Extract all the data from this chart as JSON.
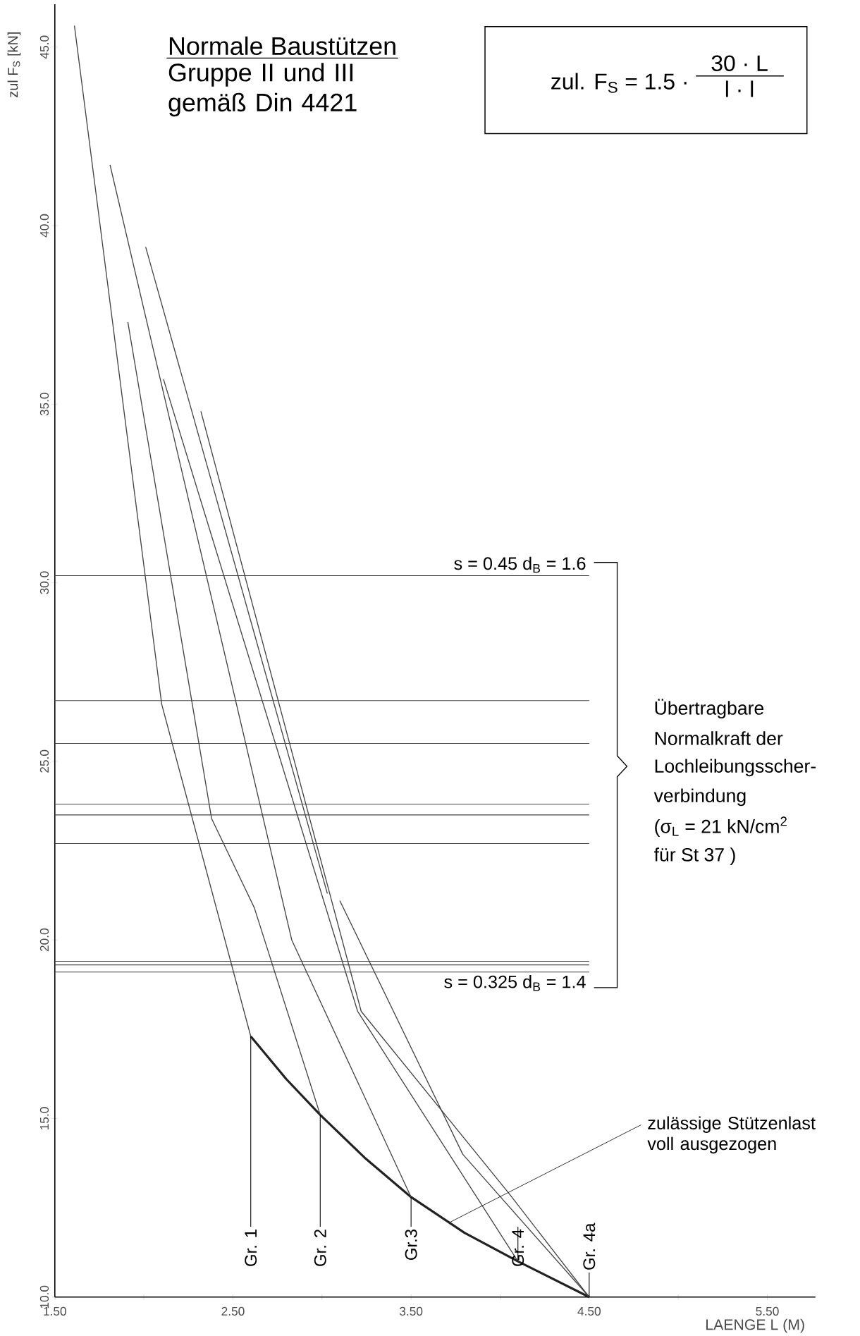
{
  "chart_data": {
    "type": "line",
    "title": "Normale Baustützen",
    "subtitle": "Gruppe II und III gemäß Din 4421",
    "xlabel": "LAENGE L (M)",
    "ylabel": "zul F$_{S}$ [kN]",
    "xlim": [
      1.5,
      5.77
    ],
    "ylim": [
      10,
      46.2
    ],
    "xticks": [
      {
        "value": 1.5,
        "label": "1.50"
      },
      {
        "value": 2.0,
        "label": null
      },
      {
        "value": 2.5,
        "label": "2.50"
      },
      {
        "value": 3.0,
        "label": null
      },
      {
        "value": 3.5,
        "label": "3.50"
      },
      {
        "value": 4.0,
        "label": null
      },
      {
        "value": 4.5,
        "label": "4.50"
      },
      {
        "value": 5.0,
        "label": null
      },
      {
        "value": 5.5,
        "label": "5.50"
      }
    ],
    "yticks": [
      {
        "value": 10,
        "label": "10.0"
      },
      {
        "value": 15,
        "label": "15.0"
      },
      {
        "value": 20,
        "label": "20.0"
      },
      {
        "value": 25,
        "label": "25.0"
      },
      {
        "value": 30,
        "label": "30.0"
      },
      {
        "value": 35,
        "label": "35.0"
      },
      {
        "value": 40,
        "label": "40.0"
      },
      {
        "value": 45,
        "label": "45.0"
      }
    ],
    "marker": "none",
    "line_style": "solid",
    "series": [
      {
        "color": "#222222",
        "x": [
          2.6,
          2.8,
          2.99,
          3.24,
          3.5,
          3.8,
          4.1,
          4.5
        ],
        "values": [
          17.3,
          16.1,
          15.1,
          13.9,
          12.8,
          11.8,
          11.0,
          10.0
        ]
      },
      {
        "color": "#444444",
        "x": [
          1.61,
          2.1,
          2.6
        ],
        "values": [
          45.6,
          26.6,
          17.3
        ]
      },
      {
        "color": "#444444",
        "x": [
          1.91,
          2.38,
          2.62,
          2.99
        ],
        "values": [
          37.3,
          23.4,
          20.9,
          15.1
        ]
      },
      {
        "color": "#444444",
        "x": [
          1.81,
          2.83,
          3.5
        ],
        "values": [
          41.7,
          20.0,
          12.8
        ]
      },
      {
        "color": "#444444",
        "x": [
          2.11,
          3.2,
          4.1
        ],
        "values": [
          35.7,
          18.0,
          11.0
        ]
      },
      {
        "color": "#444444",
        "x": [
          2.32,
          3.22,
          4.05,
          4.5
        ],
        "values": [
          34.8,
          18.0,
          12.9,
          10.0
        ]
      },
      {
        "color": "#444444",
        "x": [
          2.01,
          3.03
        ],
        "values": [
          39.4,
          21.3
        ]
      },
      {
        "color": "#444444",
        "x": [
          3.1,
          3.79,
          4.5
        ],
        "values": [
          21.1,
          14.0,
          10.0
        ]
      }
    ],
    "ref_lines": [
      {
        "axis": "y",
        "value": 30.2
      },
      {
        "axis": "y",
        "value": 26.7
      },
      {
        "axis": "y",
        "value": 25.5
      },
      {
        "axis": "y",
        "value": 23.8
      },
      {
        "axis": "y",
        "value": 23.5
      },
      {
        "axis": "y",
        "value": 22.7
      },
      {
        "axis": "y",
        "value": 19.4
      },
      {
        "axis": "y",
        "value": 19.3
      },
      {
        "axis": "y",
        "value": 19.1
      }
    ],
    "annotations": [
      {
        "text": "Gr. 1",
        "x": 2.6,
        "y": 17.3
      },
      {
        "text": "Gr. 2",
        "x": 2.99,
        "y": 15.1
      },
      {
        "text": "Gr.3",
        "x": 3.5,
        "y": 12.8
      },
      {
        "text": "Gr. 4",
        "x": 4.1,
        "y": 11.0
      },
      {
        "text": "Gr. 4a",
        "x": 4.5,
        "y": 10.0
      },
      {
        "text": "zulässige Stützenlast voll ausgezogen",
        "x": 3.72,
        "y": 12.1
      },
      "zul. F$_{S}$ = 1.5 ·",
      "30 · L",
      "l · l",
      "Übertragbare",
      "Normalkraft der",
      "Lochleibungsscher-",
      "verbindung",
      "(σ$_{L}$ = 21 kN/cm$^{2}$",
      "für St 37 )",
      "s = 0.45    d$_{B}$ = 1.6",
      "s = 0.325    d$_{B}$ = 1.4"
    ]
  }
}
